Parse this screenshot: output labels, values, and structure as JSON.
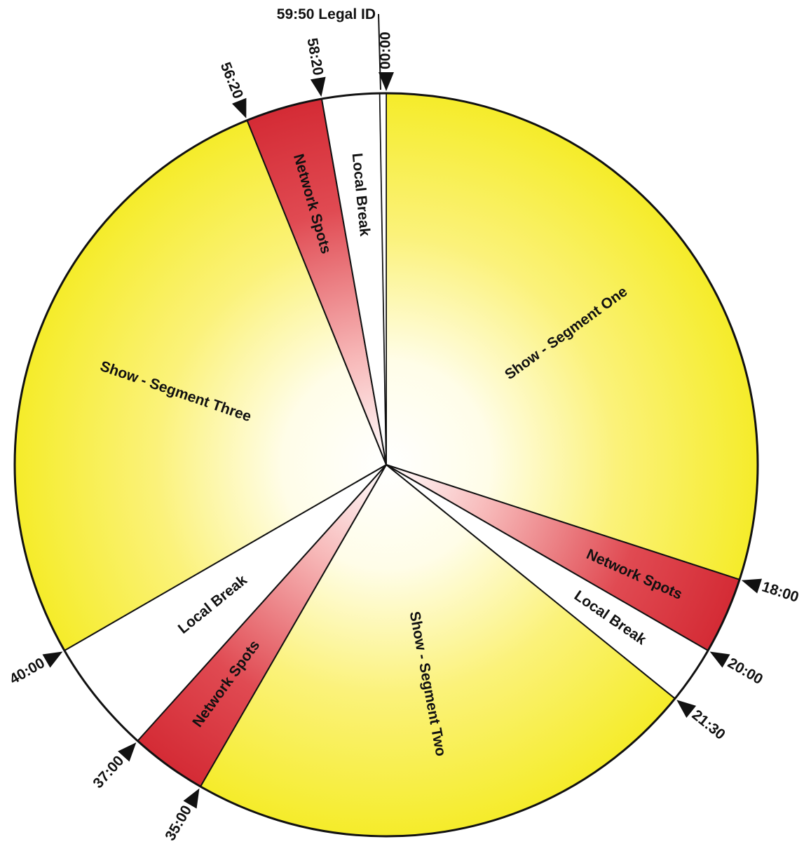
{
  "chart_data": {
    "type": "pie",
    "unit": "minutes:seconds",
    "segments": [
      {
        "label": "Show - Segment One",
        "start": "00:00",
        "end": "18:00",
        "kind": "show"
      },
      {
        "label": "Network Spots",
        "start": "18:00",
        "end": "20:00",
        "kind": "network"
      },
      {
        "label": "Local Break",
        "start": "20:00",
        "end": "21:30",
        "kind": "local"
      },
      {
        "label": "Show - Segment Two",
        "start": "21:30",
        "end": "35:00",
        "kind": "show"
      },
      {
        "label": "Network Spots",
        "start": "35:00",
        "end": "37:00",
        "kind": "network"
      },
      {
        "label": "Local Break",
        "start": "37:00",
        "end": "40:00",
        "kind": "local"
      },
      {
        "label": "Show - Segment Three",
        "start": "40:00",
        "end": "56:20",
        "kind": "show"
      },
      {
        "label": "Network Spots",
        "start": "56:20",
        "end": "58:20",
        "kind": "network"
      },
      {
        "label": "Local Break",
        "start": "58:20",
        "end": "59:50",
        "kind": "local"
      },
      {
        "label": "",
        "start": "59:50",
        "end": "60:00",
        "kind": "legal-id"
      }
    ],
    "markers": [
      "00:00",
      "18:00",
      "20:00",
      "21:30",
      "35:00",
      "37:00",
      "40:00",
      "56:20",
      "58:20"
    ],
    "legal_id_label": "59:50 Legal ID"
  },
  "colors": {
    "show": "#f5ec2a",
    "show_center": "#ffffff",
    "network": "#d42b35",
    "network_center": "#ffffff",
    "local": "#ffffff",
    "legal-id": "#ffffff",
    "outline": "#111111"
  }
}
